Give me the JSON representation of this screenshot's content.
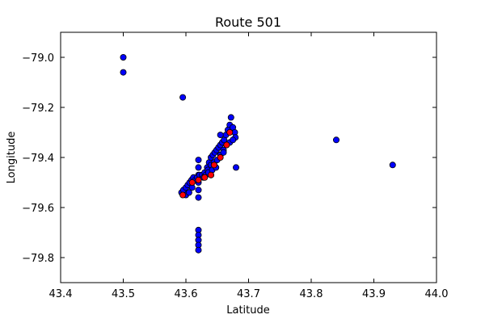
{
  "chart_data": {
    "type": "scatter",
    "title": "Route 501",
    "xlabel": "Latitude",
    "ylabel": "Longitude",
    "xlim": [
      43.4,
      44.0
    ],
    "ylim": [
      -79.9,
      -78.9
    ],
    "xticks": [
      "43.4",
      "43.5",
      "43.6",
      "43.7",
      "43.8",
      "43.9",
      "44.0"
    ],
    "yticks": [
      "−79.0",
      "−79.2",
      "−79.4",
      "−79.6",
      "−79.8"
    ],
    "grid": false,
    "legend": "none",
    "series": [
      {
        "color": "#0000ff",
        "points": [
          [
            43.5,
            -79.0
          ],
          [
            43.5,
            -79.06
          ],
          [
            43.595,
            -79.16
          ],
          [
            43.84,
            -79.33
          ],
          [
            43.93,
            -79.43
          ],
          [
            43.68,
            -79.44
          ],
          [
            43.62,
            -79.69
          ],
          [
            43.62,
            -79.71
          ],
          [
            43.62,
            -79.73
          ],
          [
            43.62,
            -79.75
          ],
          [
            43.62,
            -79.77
          ],
          [
            43.62,
            -79.41
          ],
          [
            43.62,
            -79.44
          ],
          [
            43.62,
            -79.47
          ],
          [
            43.62,
            -79.5
          ],
          [
            43.62,
            -79.53
          ],
          [
            43.62,
            -79.56
          ],
          [
            43.593,
            -79.54
          ],
          [
            43.596,
            -79.53
          ],
          [
            43.6,
            -79.52
          ],
          [
            43.603,
            -79.51
          ],
          [
            43.606,
            -79.5
          ],
          [
            43.609,
            -79.49
          ],
          [
            43.612,
            -79.48
          ],
          [
            43.615,
            -79.49
          ],
          [
            43.618,
            -79.48
          ],
          [
            43.622,
            -79.47
          ],
          [
            43.626,
            -79.47
          ],
          [
            43.63,
            -79.46
          ],
          [
            43.634,
            -79.44
          ],
          [
            43.637,
            -79.42
          ],
          [
            43.64,
            -79.4
          ],
          [
            43.643,
            -79.39
          ],
          [
            43.646,
            -79.38
          ],
          [
            43.649,
            -79.37
          ],
          [
            43.652,
            -79.36
          ],
          [
            43.655,
            -79.35
          ],
          [
            43.658,
            -79.34
          ],
          [
            43.661,
            -79.33
          ],
          [
            43.664,
            -79.31
          ],
          [
            43.667,
            -79.29
          ],
          [
            43.67,
            -79.27
          ],
          [
            43.672,
            -79.24
          ],
          [
            43.675,
            -79.28
          ],
          [
            43.678,
            -79.3
          ],
          [
            43.679,
            -79.32
          ],
          [
            43.655,
            -79.31
          ],
          [
            43.66,
            -79.37
          ],
          [
            43.665,
            -79.35
          ],
          [
            43.67,
            -79.34
          ],
          [
            43.675,
            -79.33
          ],
          [
            43.64,
            -79.43
          ],
          [
            43.645,
            -79.42
          ],
          [
            43.65,
            -79.41
          ],
          [
            43.655,
            -79.39
          ],
          [
            43.66,
            -79.38
          ],
          [
            43.635,
            -79.45
          ],
          [
            43.64,
            -79.47
          ],
          [
            43.6,
            -79.55
          ],
          [
            43.605,
            -79.54
          ],
          [
            43.61,
            -79.52
          ],
          [
            43.628,
            -79.48
          ],
          [
            43.632,
            -79.47
          ],
          [
            43.636,
            -79.46
          ],
          [
            43.642,
            -79.45
          ],
          [
            43.648,
            -79.44
          ]
        ]
      },
      {
        "color": "#ff0000",
        "points": [
          [
            43.595,
            -79.55
          ],
          [
            43.61,
            -79.5
          ],
          [
            43.62,
            -79.49
          ],
          [
            43.63,
            -79.48
          ],
          [
            43.64,
            -79.47
          ],
          [
            43.645,
            -79.43
          ],
          [
            43.655,
            -79.4
          ],
          [
            43.665,
            -79.35
          ],
          [
            43.67,
            -79.3
          ]
        ]
      }
    ]
  }
}
